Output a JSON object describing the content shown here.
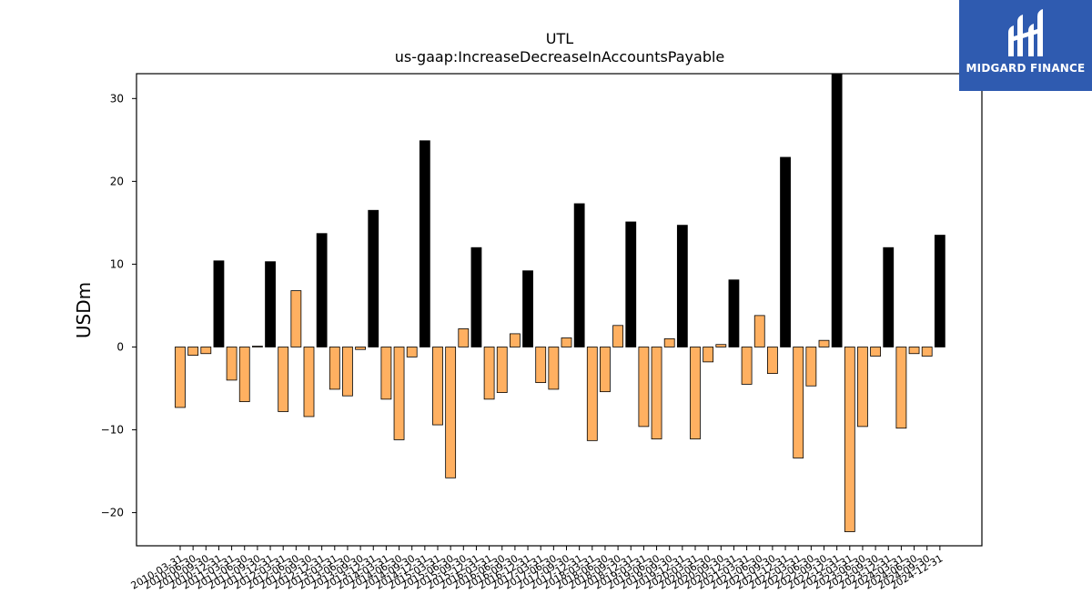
{
  "brand": {
    "name": "MIDGARD FINANCE",
    "logo_icon": "midgard-finance-logo-icon",
    "bg_color": "#2f5bb0"
  },
  "chart_data": {
    "type": "bar",
    "title": "UTL",
    "subtitle": "us-gaap:IncreaseDecreaseInAccountsPayable",
    "ylabel": "USDm",
    "xlabel": "",
    "ylim": [
      -24,
      33
    ],
    "yticks": [
      -20,
      -10,
      0,
      10,
      20,
      30
    ],
    "grid": false,
    "colors": {
      "quarter": "#ffb061",
      "year_end": "#000000",
      "edge": "#000000"
    },
    "x_tick_labels": [
      "2010-03-31",
      "2010-06-30",
      "2010-09-30",
      "2010-12-31",
      "2011-03-31",
      "2011-06-30",
      "2011-09-30",
      "2011-12-31",
      "2012-03-31",
      "2012-06-30",
      "2012-09-30",
      "2012-12-31",
      "2013-03-31",
      "2013-06-30",
      "2013-09-30",
      "2013-12-31",
      "2014-03-31",
      "2014-06-30",
      "2014-09-30",
      "2014-12-31",
      "2015-03-31",
      "2015-06-30",
      "2015-09-30",
      "2015-12-31",
      "2016-03-31",
      "2016-06-30",
      "2016-09-30",
      "2016-12-31",
      "2017-03-31",
      "2017-06-30",
      "2017-09-30",
      "2017-12-31",
      "2018-03-31",
      "2018-06-30",
      "2018-09-30",
      "2018-12-31",
      "2019-03-31",
      "2019-06-30",
      "2019-09-30",
      "2019-12-31",
      "2020-03-31",
      "2020-06-30",
      "2020-09-30",
      "2020-12-31",
      "2021-03-31",
      "2021-06-30",
      "2021-09-30",
      "2021-12-31",
      "2022-03-31",
      "2022-06-30",
      "2022-09-30",
      "2022-12-31",
      "2023-03-31",
      "2023-06-30",
      "2023-09-30",
      "2023-12-31",
      "2024-03-31",
      "2024-06-30",
      "2024-09-30",
      "2024-12-31"
    ],
    "bars": [
      {
        "x": "2010-03-31",
        "value": -7.3,
        "kind": "quarter"
      },
      {
        "x": "2010-06-30",
        "value": -1.0,
        "kind": "quarter"
      },
      {
        "x": "2010-09-30",
        "value": -0.8,
        "kind": "quarter"
      },
      {
        "x": "2010-12-31",
        "value": 10.4,
        "kind": "year_end"
      },
      {
        "x": "2011-03-31",
        "value": -4.0,
        "kind": "quarter"
      },
      {
        "x": "2011-06-30",
        "value": -6.6,
        "kind": "quarter"
      },
      {
        "x": "2011-09-30",
        "value": 0.1,
        "kind": "quarter"
      },
      {
        "x": "2011-12-31",
        "value": 10.3,
        "kind": "year_end"
      },
      {
        "x": "2012-03-31",
        "value": -7.8,
        "kind": "quarter"
      },
      {
        "x": "2012-06-30",
        "value": 6.8,
        "kind": "quarter"
      },
      {
        "x": "2012-09-30",
        "value": -8.4,
        "kind": "quarter"
      },
      {
        "x": "2012-12-31",
        "value": 13.7,
        "kind": "year_end"
      },
      {
        "x": "2013-03-31",
        "value": -5.1,
        "kind": "quarter"
      },
      {
        "x": "2013-06-30",
        "value": -5.9,
        "kind": "quarter"
      },
      {
        "x": "2013-09-30",
        "value": -0.3,
        "kind": "quarter"
      },
      {
        "x": "2013-12-31",
        "value": 16.5,
        "kind": "year_end"
      },
      {
        "x": "2014-03-31",
        "value": -6.3,
        "kind": "quarter"
      },
      {
        "x": "2014-06-30",
        "value": -11.2,
        "kind": "quarter"
      },
      {
        "x": "2014-09-30",
        "value": -1.2,
        "kind": "quarter"
      },
      {
        "x": "2014-12-31",
        "value": 24.9,
        "kind": "year_end"
      },
      {
        "x": "2015-03-31",
        "value": -9.4,
        "kind": "quarter"
      },
      {
        "x": "2015-06-30",
        "value": -15.8,
        "kind": "quarter"
      },
      {
        "x": "2015-09-30",
        "value": 2.2,
        "kind": "quarter"
      },
      {
        "x": "2015-12-31",
        "value": 12.0,
        "kind": "year_end"
      },
      {
        "x": "2016-03-31",
        "value": -6.3,
        "kind": "quarter"
      },
      {
        "x": "2016-06-30",
        "value": -5.5,
        "kind": "quarter"
      },
      {
        "x": "2016-09-30",
        "value": 1.6,
        "kind": "quarter"
      },
      {
        "x": "2016-12-31",
        "value": 9.2,
        "kind": "year_end"
      },
      {
        "x": "2017-03-31",
        "value": -4.3,
        "kind": "quarter"
      },
      {
        "x": "2017-06-30",
        "value": -5.1,
        "kind": "quarter"
      },
      {
        "x": "2017-09-30",
        "value": 1.1,
        "kind": "quarter"
      },
      {
        "x": "2017-12-31",
        "value": 17.3,
        "kind": "year_end"
      },
      {
        "x": "2018-03-31",
        "value": -11.3,
        "kind": "quarter"
      },
      {
        "x": "2018-06-30",
        "value": -5.4,
        "kind": "quarter"
      },
      {
        "x": "2018-09-30",
        "value": 2.6,
        "kind": "quarter"
      },
      {
        "x": "2018-12-31",
        "value": 15.1,
        "kind": "year_end"
      },
      {
        "x": "2019-03-31",
        "value": -9.6,
        "kind": "quarter"
      },
      {
        "x": "2019-06-30",
        "value": -11.1,
        "kind": "quarter"
      },
      {
        "x": "2019-09-30",
        "value": 1.0,
        "kind": "quarter"
      },
      {
        "x": "2019-12-31",
        "value": 14.7,
        "kind": "year_end"
      },
      {
        "x": "2020-03-31",
        "value": -11.1,
        "kind": "quarter"
      },
      {
        "x": "2020-06-30",
        "value": -1.8,
        "kind": "quarter"
      },
      {
        "x": "2020-09-30",
        "value": 0.3,
        "kind": "quarter"
      },
      {
        "x": "2020-12-31",
        "value": 8.1,
        "kind": "year_end"
      },
      {
        "x": "2021-03-31",
        "value": -4.5,
        "kind": "quarter"
      },
      {
        "x": "2021-06-30",
        "value": 3.8,
        "kind": "quarter"
      },
      {
        "x": "2021-09-30",
        "value": -3.2,
        "kind": "quarter"
      },
      {
        "x": "2021-12-31",
        "value": 22.9,
        "kind": "year_end"
      },
      {
        "x": "2022-03-31",
        "value": -13.4,
        "kind": "quarter"
      },
      {
        "x": "2022-06-30",
        "value": -4.7,
        "kind": "quarter"
      },
      {
        "x": "2022-09-30",
        "value": 0.8,
        "kind": "quarter"
      },
      {
        "x": "2022-12-31",
        "value": 33.2,
        "kind": "year_end"
      },
      {
        "x": "2023-03-31",
        "value": -22.3,
        "kind": "quarter"
      },
      {
        "x": "2023-06-30",
        "value": -9.6,
        "kind": "quarter"
      },
      {
        "x": "2023-09-30",
        "value": -1.1,
        "kind": "quarter"
      },
      {
        "x": "2023-12-31",
        "value": 12.0,
        "kind": "year_end"
      },
      {
        "x": "2024-03-31",
        "value": -9.8,
        "kind": "quarter"
      },
      {
        "x": "2024-06-30",
        "value": -0.8,
        "kind": "quarter"
      },
      {
        "x": "2024-09-30",
        "value": -1.1,
        "kind": "quarter"
      },
      {
        "x": "2024-12-31",
        "value": 13.5,
        "kind": "year_end"
      }
    ]
  }
}
